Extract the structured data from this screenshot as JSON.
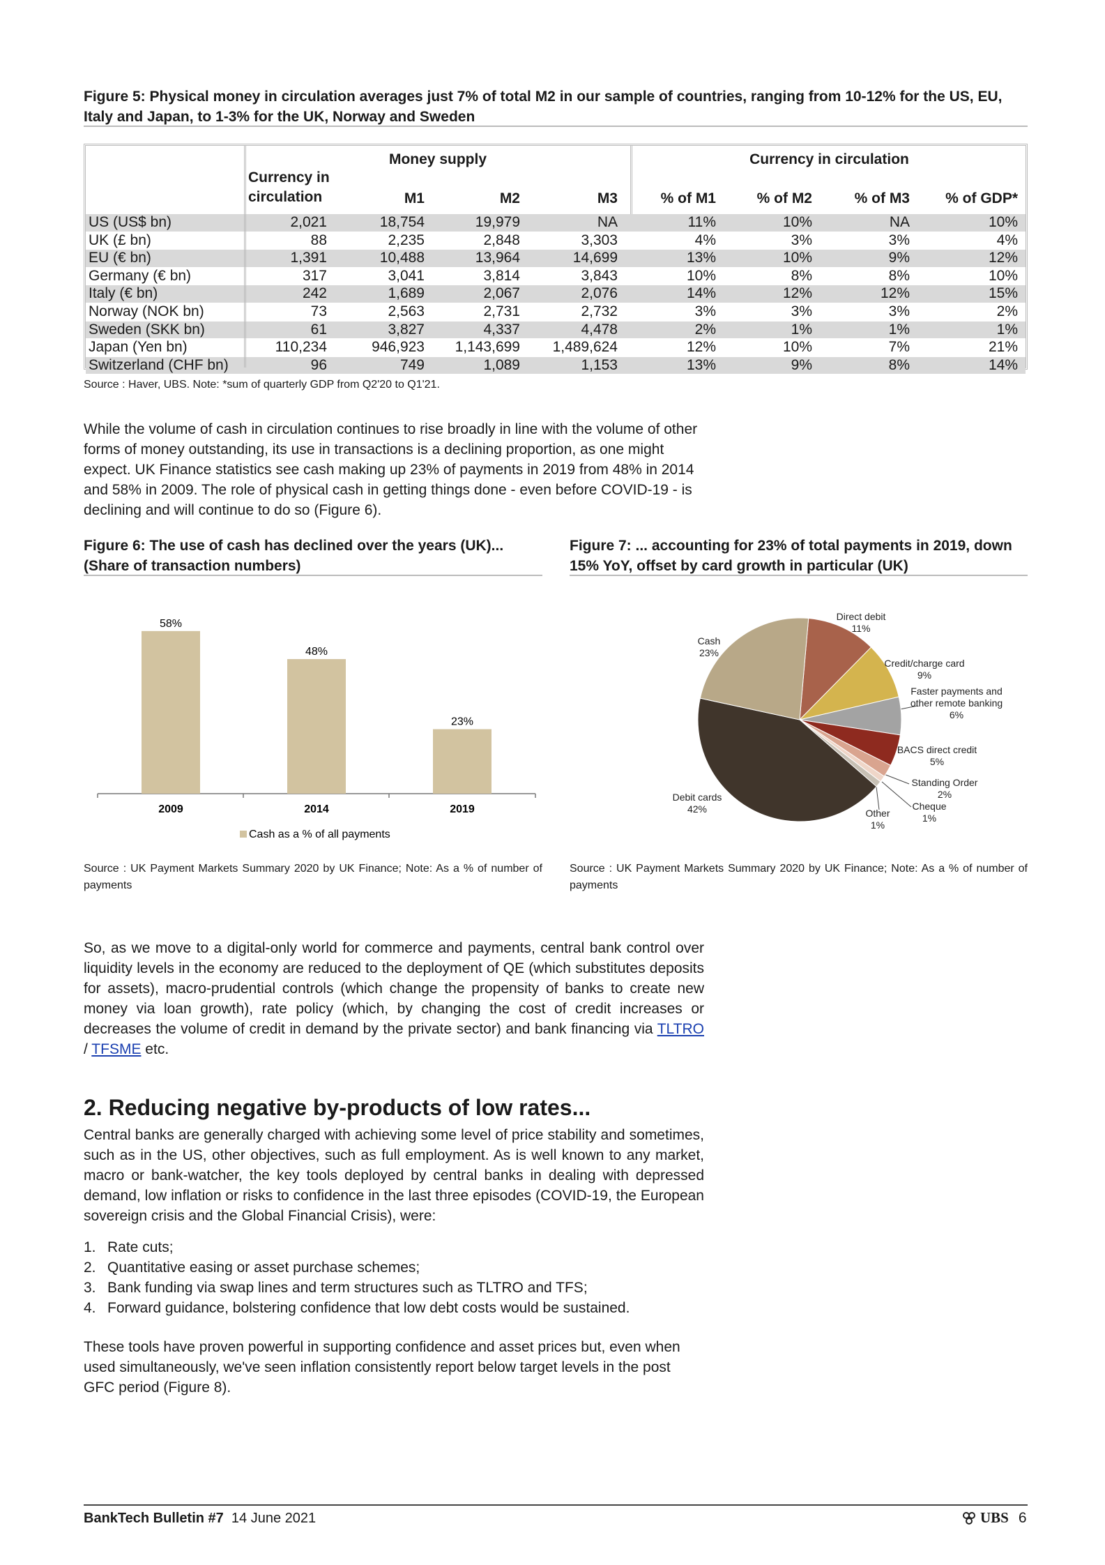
{
  "figure5": {
    "title": "Figure 5: Physical money in circulation averages just 7% of total M2 in our sample of countries, ranging from 10-12% for the US, EU, Italy and Japan, to 1-3% for the UK, Norway and Sweden",
    "table": {
      "group_headers": [
        "Money supply",
        "Currency in circulation"
      ],
      "columns": [
        "Currency in circulation",
        "M1",
        "M2",
        "M3",
        "% of M1",
        "% of M2",
        "% of M3",
        "% of GDP*"
      ],
      "rows": [
        [
          "US (US$ bn)",
          "2,021",
          "18,754",
          "19,979",
          "NA",
          "11%",
          "10%",
          "NA",
          "10%"
        ],
        [
          "UK (£ bn)",
          "88",
          "2,235",
          "2,848",
          "3,303",
          "4%",
          "3%",
          "3%",
          "4%"
        ],
        [
          "EU (€ bn)",
          "1,391",
          "10,488",
          "13,964",
          "14,699",
          "13%",
          "10%",
          "9%",
          "12%"
        ],
        [
          "Germany (€ bn)",
          "317",
          "3,041",
          "3,814",
          "3,843",
          "10%",
          "8%",
          "8%",
          "10%"
        ],
        [
          "Italy (€ bn)",
          "242",
          "1,689",
          "2,067",
          "2,076",
          "14%",
          "12%",
          "12%",
          "15%"
        ],
        [
          "Norway (NOK bn)",
          "73",
          "2,563",
          "2,731",
          "2,732",
          "3%",
          "3%",
          "3%",
          "2%"
        ],
        [
          "Sweden (SKK bn)",
          "61",
          "3,827",
          "4,337",
          "4,478",
          "2%",
          "1%",
          "1%",
          "1%"
        ],
        [
          "Japan (Yen bn)",
          "110,234",
          "946,923",
          "1,143,699",
          "1,489,624",
          "12%",
          "10%",
          "7%",
          "21%"
        ],
        [
          "Switzerland (CHF bn)",
          "96",
          "749",
          "1,089",
          "1,153",
          "13%",
          "9%",
          "8%",
          "14%"
        ]
      ]
    },
    "source": "Source : Haver, UBS. Note: *sum of quarterly GDP from Q2'20 to Q1'21."
  },
  "paragraph1": "While the volume of cash in circulation continues to rise broadly in line with the volume of other forms of money outstanding, its use in transactions is a declining proportion, as one might expect. UK Finance statistics see cash making up 23% of payments in 2019 from 48% in 2014 and 58% in 2009. The role of physical cash in getting things done - even before COVID-19 - is declining and will continue to do so (Figure 6).",
  "chart_data": [
    {
      "type": "bar",
      "title": "Figure 6: The use of cash has declined over the years (UK)...",
      "subtitle": "(Share of transaction numbers)",
      "categories": [
        "2009",
        "2014",
        "2019"
      ],
      "series": [
        {
          "name": "Cash as a % of all payments",
          "color": "#d2c3a0",
          "values": [
            58,
            48,
            23
          ],
          "value_labels": [
            "58%",
            "48%",
            "23%"
          ]
        }
      ],
      "source": "Source : UK Payment Markets Summary 2020 by UK Finance; Note: As a % of number of payments"
    },
    {
      "type": "pie",
      "title": "Figure 7: ... accounting for 23% of total payments in 2019, down 15% YoY, offset by card growth in particular (UK)",
      "categories": [
        "Direct debit",
        "Credit/charge card",
        "Faster payments and other remote banking",
        "BACS direct credit",
        "Standing Order",
        "Cheque",
        "Other",
        "Debit cards",
        "Cash"
      ],
      "values": [
        11,
        9,
        6,
        5,
        2,
        1,
        1,
        42,
        23
      ],
      "value_labels": [
        "11%",
        "9%",
        "6%",
        "5%",
        "2%",
        "1%",
        "1%",
        "42%",
        "23%"
      ],
      "colors": [
        "#a8624b",
        "#d4b44e",
        "#a3a3a3",
        "#8e2a1f",
        "#d9a48f",
        "#efd6c8",
        "#c7c0b4",
        "#40352b",
        "#b8a888"
      ],
      "source": "Source : UK Payment Markets Summary 2020 by UK Finance; Note: As a % of number of payments"
    }
  ],
  "paragraph2": [
    "So, as we move to a digital-only world for commerce and payments, central bank control over liquidity levels in the economy are reduced to the deployment of QE (which substitutes deposits for assets), macro-prudential controls (which change the propensity of banks to create new money via loan growth), rate policy (which, by changing the cost of credit increases or decreases the volume of credit in demand by the private sector) and bank financing via ",
    "TLTRO",
    " / ",
    "TFSME",
    " etc."
  ],
  "section": {
    "heading": "2. Reducing negative by-products of low rates...",
    "paragraph": "Central banks are generally charged with achieving some level of price stability and sometimes, such as in the US, other objectives, such as full employment. As is well known to any market, macro or bank-watcher, the key tools deployed by central banks in dealing with depressed demand, low inflation or risks to confidence in the last three episodes (COVID-19, the European sovereign crisis and the Global Financial Crisis), were:",
    "list": [
      [
        "1.",
        "Rate cuts;"
      ],
      [
        "2.",
        "Quantitative easing or asset purchase schemes;"
      ],
      [
        "3.",
        "Bank funding via swap lines and term structures such as TLTRO and TFS;"
      ],
      [
        "4.",
        "Forward guidance, bolstering confidence that low debt costs would be sustained."
      ]
    ],
    "closing": "These tools have proven powerful in supporting confidence and asset prices but, even when used simultaneously, we've seen inflation consistently report below target levels in the post GFC period (Figure 8)."
  },
  "footer": {
    "title": "BankTech Bulletin #7",
    "date": "14 June 2021",
    "brand": "UBS",
    "page": "6"
  }
}
